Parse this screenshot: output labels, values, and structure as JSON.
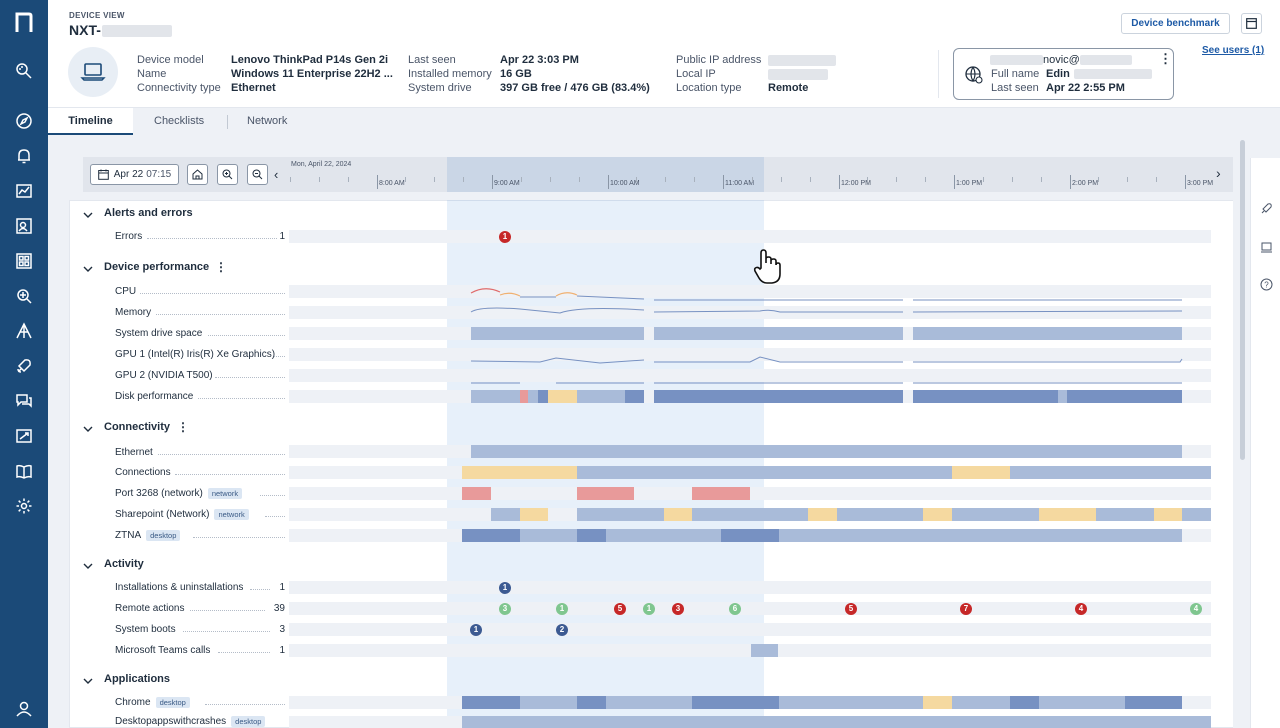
{
  "header": {
    "section_label": "DEVICE VIEW",
    "device_name_prefix": "NXT-",
    "buttons": {
      "benchmark": "Device benchmark"
    },
    "see_users": "See users (1)",
    "device_info": [
      {
        "label": "Device model",
        "value": "Lenovo ThinkPad P14s Gen 2i"
      },
      {
        "label": "Name",
        "value": "Windows 11 Enterprise 22H2 ..."
      },
      {
        "label": "Connectivity type",
        "value": "Ethernet"
      }
    ],
    "system_info": [
      {
        "label": "Last seen",
        "value": "Apr 22 3:03 PM"
      },
      {
        "label": "Installed memory",
        "value": "16 GB"
      },
      {
        "label": "System drive",
        "value": "397 GB free / 476 GB (83.4%)"
      }
    ],
    "network_info": [
      {
        "label": "Public IP address",
        "value": ""
      },
      {
        "label": "Local IP",
        "value": ""
      },
      {
        "label": "Location type",
        "value": "Remote"
      }
    ],
    "user_card": {
      "email_suffix": "novic@",
      "full_name_label": "Full name",
      "full_name_value": "Edin",
      "last_seen_label": "Last seen",
      "last_seen_value": "Apr 22 2:55 PM"
    }
  },
  "tabs": [
    {
      "label": "Timeline",
      "active": true
    },
    {
      "label": "Checklists",
      "active": false
    },
    {
      "label": "Network",
      "active": false
    }
  ],
  "timeline": {
    "date_button": {
      "date": "Apr 22",
      "time": "07:15"
    },
    "axis_date": "Mon, April 22, 2024",
    "ticks": [
      "8:00 AM",
      "9:00 AM",
      "10:00 AM",
      "11:00 AM",
      "12:00 PM",
      "1:00 PM",
      "2:00 PM",
      "3:00 PM"
    ]
  },
  "sections": {
    "alerts": {
      "title": "Alerts and errors",
      "rows": [
        {
          "label": "Errors",
          "count": "1"
        }
      ]
    },
    "performance": {
      "title": "Device performance",
      "rows": [
        {
          "label": "CPU"
        },
        {
          "label": "Memory"
        },
        {
          "label": "System drive space"
        },
        {
          "label": "GPU 1 (Intel(R) Iris(R) Xe Graphics)"
        },
        {
          "label": "GPU 2 (NVIDIA T500)"
        },
        {
          "label": "Disk performance"
        }
      ]
    },
    "connectivity": {
      "title": "Connectivity",
      "rows": [
        {
          "label": "Ethernet"
        },
        {
          "label": "Connections"
        },
        {
          "label": "Port 3268 (network)",
          "tag": "network"
        },
        {
          "label": "Sharepoint (Network)",
          "tag": "network"
        },
        {
          "label": "ZTNA",
          "tag": "desktop"
        }
      ]
    },
    "activity": {
      "title": "Activity",
      "rows": [
        {
          "label": "Installations & uninstallations",
          "count": "1"
        },
        {
          "label": "Remote actions",
          "count": "39"
        },
        {
          "label": "System boots",
          "count": "3"
        },
        {
          "label": "Microsoft Teams calls",
          "count": "1"
        }
      ]
    },
    "applications": {
      "title": "Applications",
      "rows": [
        {
          "label": "Chrome",
          "tag": "desktop"
        },
        {
          "label": "Desktopappswithcrashes",
          "tag": "desktop"
        }
      ]
    }
  },
  "badges": {
    "errors": [
      "1"
    ],
    "installations": [
      "1"
    ],
    "remote_actions": [
      "3",
      "1",
      "5",
      "1",
      "3",
      "6",
      "5",
      "7",
      "4",
      "4"
    ],
    "system_boots": [
      "1",
      "2"
    ]
  },
  "colors": {
    "sidebar": "#1b4a78",
    "accent": "#1d5aa6",
    "bar_blue": "#a9bbd9",
    "bar_dark_blue": "#7791c2",
    "bar_yellow": "#f5d9a0",
    "bar_red": "#e89a9a",
    "badge_red": "#c62828",
    "badge_green": "#7fc68f",
    "badge_navy": "#3c5a92"
  }
}
